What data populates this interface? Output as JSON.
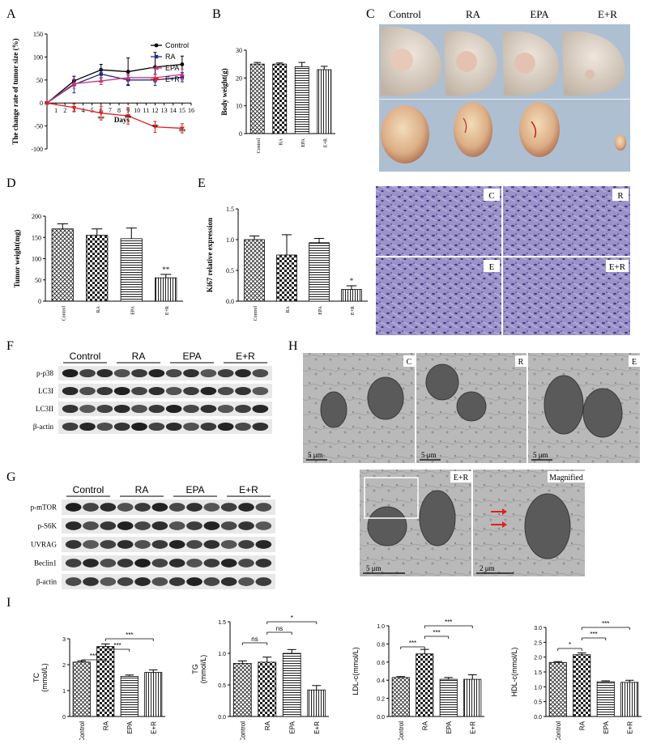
{
  "panels": {
    "A": "A",
    "B": "B",
    "C": "C",
    "D": "D",
    "E": "E",
    "F": "F",
    "G": "G",
    "H": "H",
    "I": "I"
  },
  "chart_data": [
    {
      "id": "A",
      "type": "line",
      "xlabel": "Days",
      "ylabel": "The change rate of tumor size (%)",
      "xlim": [
        0,
        16
      ],
      "ylim": [
        -100,
        150
      ],
      "xticks": [
        "1",
        "2",
        "3",
        "4",
        "5",
        "6",
        "7",
        "8",
        "9",
        "10",
        "11",
        "12",
        "13",
        "14",
        "15",
        "16"
      ],
      "yticks": [
        "-100",
        "-50",
        "0",
        "50",
        "100",
        "150"
      ],
      "legend_position": "top-right",
      "series": [
        {
          "name": "Control",
          "color": "#000000",
          "marker": "circle",
          "x": [
            0,
            3,
            6,
            9,
            12,
            15
          ],
          "y": [
            0,
            48,
            72,
            68,
            78,
            84
          ],
          "err": [
            0,
            10,
            12,
            30,
            32,
            18
          ]
        },
        {
          "name": "RA",
          "color": "#1f2f8c",
          "marker": "square",
          "x": [
            0,
            3,
            6,
            9,
            12,
            15
          ],
          "y": [
            0,
            40,
            63,
            50,
            50,
            56
          ],
          "err": [
            0,
            18,
            10,
            10,
            12,
            10
          ]
        },
        {
          "name": "EPA",
          "color": "#cc3377",
          "marker": "triangle",
          "x": [
            0,
            3,
            6,
            9,
            12,
            15
          ],
          "y": [
            0,
            42,
            48,
            55,
            55,
            62
          ],
          "err": [
            0,
            10,
            8,
            8,
            8,
            12
          ]
        },
        {
          "name": "E+R",
          "color": "#e02020",
          "marker": "triangle-down",
          "x": [
            0,
            3,
            6,
            9,
            12,
            15
          ],
          "y": [
            0,
            -10,
            -22,
            -28,
            -52,
            -55
          ],
          "err": [
            0,
            8,
            15,
            18,
            12,
            10
          ]
        }
      ],
      "annotations": [
        {
          "x": 6,
          "y": -40,
          "text": "**"
        },
        {
          "x": 9,
          "y": -38,
          "text": "**"
        },
        {
          "x": 12,
          "y": -58,
          "text": "**"
        },
        {
          "x": 15,
          "y": -67,
          "text": "**"
        }
      ]
    },
    {
      "id": "B",
      "type": "bar",
      "ylabel": "Body weight(g)",
      "ylim": [
        0,
        30
      ],
      "yticks": [
        "0",
        "10",
        "20",
        "30"
      ],
      "categories": [
        "Control",
        "RA",
        "EPA",
        "E+R"
      ],
      "values": [
        25,
        25,
        24,
        23
      ],
      "err": [
        0.6,
        0.4,
        1.6,
        1.2
      ],
      "annotations": [
        "",
        "",
        "",
        ""
      ]
    },
    {
      "id": "D",
      "type": "bar",
      "ylabel": "Tumor weight(mg)",
      "ylim": [
        0,
        200
      ],
      "yticks": [
        "0",
        "50",
        "100",
        "150",
        "200"
      ],
      "categories": [
        "Control",
        "RA",
        "EPA",
        "E+R"
      ],
      "values": [
        170,
        155,
        147,
        55
      ],
      "err": [
        12,
        15,
        25,
        8
      ],
      "annotations": [
        "",
        "",
        "",
        "**"
      ]
    },
    {
      "id": "E",
      "type": "bar",
      "ylabel": "Ki67 relative expression",
      "ylim": [
        0,
        1.5
      ],
      "yticks": [
        "0.0",
        "0.5",
        "1.0",
        "1.5"
      ],
      "categories": [
        "Control",
        "RA",
        "EPA",
        "E+R"
      ],
      "values": [
        1.0,
        0.75,
        0.95,
        0.19
      ],
      "err": [
        0.06,
        0.33,
        0.07,
        0.06
      ],
      "annotations": [
        "",
        "",
        "",
        "*"
      ]
    },
    {
      "id": "I1",
      "type": "bar",
      "ylabel": "TC\n(mmol/L)",
      "ylim": [
        0,
        3
      ],
      "yticks": [
        "0",
        "1",
        "2",
        "3"
      ],
      "categories": [
        "Control",
        "RA",
        "EPA",
        "E+R"
      ],
      "values": [
        2.1,
        2.7,
        1.55,
        1.7
      ],
      "err": [
        0.05,
        0.1,
        0.05,
        0.1
      ],
      "brackets": [
        {
          "from": 0,
          "to": 1,
          "level": 0,
          "text": "***"
        },
        {
          "from": 1,
          "to": 2,
          "level": 1,
          "text": "***"
        },
        {
          "from": 1,
          "to": 3,
          "level": 2,
          "text": "***"
        }
      ]
    },
    {
      "id": "I2",
      "type": "bar",
      "ylabel": "TG\n(mmol/L)",
      "ylim": [
        0,
        1.5
      ],
      "yticks": [
        "0.0",
        "0.5",
        "1.0",
        "1.5"
      ],
      "categories": [
        "Control",
        "RA",
        "EPA",
        "E+R"
      ],
      "values": [
        0.84,
        0.86,
        1.0,
        0.42
      ],
      "err": [
        0.04,
        0.08,
        0.06,
        0.07
      ],
      "brackets": [
        {
          "from": 0,
          "to": 1,
          "level": 0,
          "text": "ns"
        },
        {
          "from": 1,
          "to": 2,
          "level": 1,
          "text": "ns"
        },
        {
          "from": 1,
          "to": 3,
          "level": 2,
          "text": "*"
        }
      ]
    },
    {
      "id": "I3",
      "type": "bar",
      "ylabel": "LDL-c(mmol/L)",
      "ylim": [
        0,
        1.0
      ],
      "yticks": [
        "0.0",
        "0.2",
        "0.4",
        "0.6",
        "0.8",
        "1.0"
      ],
      "categories": [
        "Control",
        "RA",
        "EPA",
        "E+R"
      ],
      "values": [
        0.43,
        0.69,
        0.41,
        0.41
      ],
      "err": [
        0.01,
        0.05,
        0.02,
        0.05
      ],
      "brackets": [
        {
          "from": 0,
          "to": 1,
          "level": 0,
          "text": "***"
        },
        {
          "from": 1,
          "to": 2,
          "level": 1,
          "text": "***"
        },
        {
          "from": 1,
          "to": 3,
          "level": 2,
          "text": "***"
        }
      ]
    },
    {
      "id": "I4",
      "type": "bar",
      "ylabel": "HDL-c(mmol/L)",
      "ylim": [
        0,
        3
      ],
      "yticks": [
        "0.0",
        "0.5",
        "1.0",
        "1.5",
        "2.0",
        "2.5",
        "3.0"
      ],
      "categories": [
        "Control",
        "RA",
        "EPA",
        "E+R"
      ],
      "values": [
        1.82,
        2.08,
        1.17,
        1.15
      ],
      "err": [
        0.03,
        0.06,
        0.03,
        0.07
      ],
      "brackets": [
        {
          "from": 0,
          "to": 1,
          "level": 0,
          "text": "*"
        },
        {
          "from": 1,
          "to": 2,
          "level": 1,
          "text": "***"
        },
        {
          "from": 1,
          "to": 3,
          "level": 2,
          "text": "***"
        }
      ]
    }
  ],
  "photo_C": {
    "labels": [
      "Control",
      "RA",
      "EPA",
      "E+R"
    ]
  },
  "histology": {
    "labels": [
      "C",
      "R",
      "E",
      "E+R"
    ]
  },
  "blot_F": {
    "groups": [
      "Control",
      "RA",
      "EPA",
      "E+R"
    ],
    "rows": [
      "p-p38",
      "LC3I",
      "LC3II",
      "β-actin"
    ]
  },
  "blot_G": {
    "groups": [
      "Control",
      "RA",
      "EPA",
      "E+R"
    ],
    "rows": [
      "p-mTOR",
      "p-S6K",
      "UVRAG",
      "Beclin1",
      "β-actin"
    ]
  },
  "tem_H": {
    "panel_labels": [
      "C",
      "R",
      "E",
      "E+R",
      "Magnified"
    ],
    "scale": [
      "5 μm",
      "5 μm",
      "5 μm",
      "5 μm",
      "2 μm"
    ]
  }
}
